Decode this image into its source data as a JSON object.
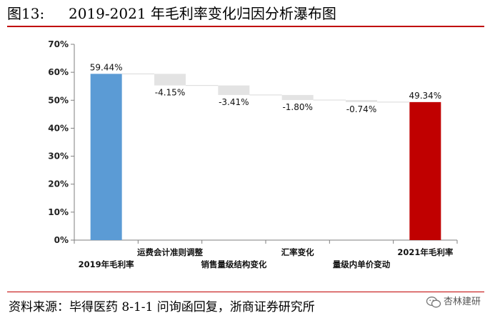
{
  "title": {
    "figure_no": "图13:",
    "text": "2019-2021 年毛利率变化归因分析瀑布图"
  },
  "source": "资料来源：毕得医药 8-1-1 问询函回复，浙商证券研究所",
  "watermark": {
    "text": "杏林建研",
    "icon": "wechat-icon"
  },
  "colors": {
    "start_bar": "#5b9bd5",
    "end_bar": "#c00000",
    "step_bar": "#e3e3e3",
    "rule": "#c00000"
  },
  "chart_data": {
    "type": "bar",
    "subtype": "waterfall",
    "ylim": [
      0,
      70
    ],
    "y_ticks": [
      "0%",
      "10%",
      "20%",
      "30%",
      "40%",
      "50%",
      "60%",
      "70%"
    ],
    "grid": false,
    "legend": "none",
    "categories": [
      "2019年毛利率",
      "运费会计准则调整",
      "销售量级结构变化",
      "汇率变化",
      "量级内单价变动",
      "2021年毛利率"
    ],
    "values": [
      59.44,
      -4.15,
      -3.41,
      -1.8,
      -0.74,
      49.34
    ],
    "data_labels": [
      "59.44%",
      "-4.15%",
      "-3.41%",
      "-1.80%",
      "-0.74%",
      "49.34%"
    ],
    "kinds": [
      "total",
      "delta",
      "delta",
      "delta",
      "delta",
      "total"
    ]
  }
}
